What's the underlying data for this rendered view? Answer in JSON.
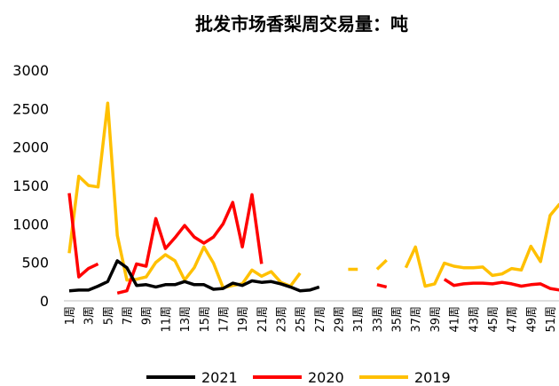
{
  "chart_data": {
    "type": "line",
    "title": "批发市场香梨周交易量：吨",
    "categories": [
      "1周",
      null,
      "3周",
      null,
      "5周",
      null,
      "7周",
      null,
      "9周",
      null,
      "11周",
      null,
      "13周",
      null,
      "15周",
      null,
      "17周",
      null,
      "19周",
      null,
      "21周",
      null,
      "23周",
      null,
      "25周",
      null,
      "27周",
      null,
      "29周",
      null,
      "31周",
      null,
      "33周",
      null,
      "35周",
      null,
      "37周",
      null,
      "39周",
      null,
      "41周",
      null,
      "43周",
      null,
      "45周",
      null,
      "47周",
      null,
      "49周",
      null,
      "51周",
      null
    ],
    "series": [
      {
        "name": "2021",
        "color": "#000000",
        "values": [
          130,
          140,
          140,
          190,
          250,
          520,
          430,
          200,
          210,
          180,
          210,
          210,
          250,
          210,
          210,
          150,
          160,
          230,
          200,
          260,
          240,
          250,
          220,
          180,
          130,
          140,
          180,
          null,
          null,
          null,
          null,
          null,
          null,
          null,
          null,
          null,
          null,
          null,
          null,
          null,
          null,
          null,
          null,
          null,
          null,
          null,
          null,
          null,
          null,
          null,
          null,
          null
        ]
      },
      {
        "name": "2020",
        "color": "#ff0000",
        "values": [
          1400,
          310,
          420,
          480,
          null,
          100,
          130,
          480,
          450,
          1070,
          680,
          820,
          980,
          830,
          750,
          830,
          1000,
          1280,
          700,
          1380,
          480,
          null,
          null,
          null,
          null,
          null,
          null,
          null,
          null,
          null,
          null,
          null,
          210,
          180,
          null,
          null,
          null,
          null,
          null,
          280,
          200,
          220,
          230,
          230,
          220,
          240,
          220,
          190,
          210,
          220,
          160,
          140
        ]
      },
      {
        "name": "2019",
        "color": "#ffc000",
        "values": [
          620,
          1620,
          1500,
          1480,
          2570,
          850,
          270,
          280,
          310,
          500,
          600,
          520,
          270,
          430,
          700,
          490,
          170,
          200,
          220,
          400,
          320,
          380,
          240,
          190,
          360,
          null,
          null,
          null,
          null,
          410,
          410,
          null,
          410,
          530,
          null,
          430,
          700,
          190,
          220,
          490,
          450,
          430,
          430,
          440,
          330,
          350,
          420,
          400,
          710,
          510,
          1110,
          1260
        ]
      }
    ],
    "ylim": [
      0,
      3000
    ],
    "yticks": [
      0,
      500,
      1000,
      1500,
      2000,
      2500,
      3000
    ],
    "legend": "bottom"
  }
}
